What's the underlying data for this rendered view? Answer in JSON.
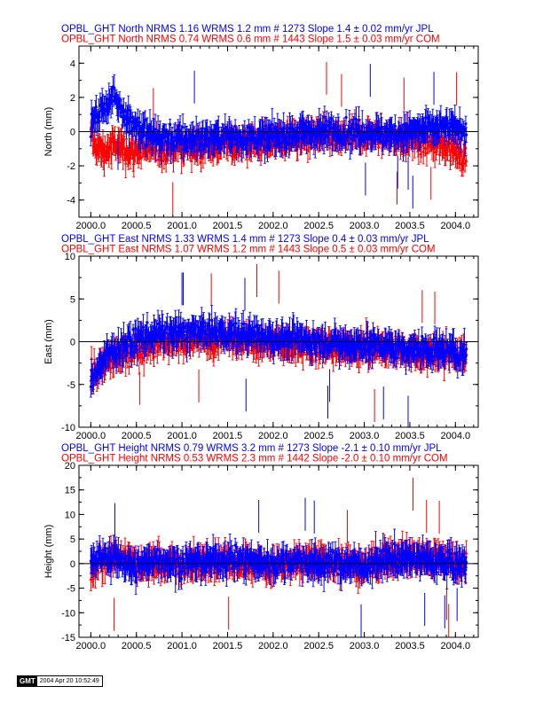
{
  "colors": {
    "jpl": "#0000ff",
    "com": "#ff0000",
    "axis": "#000000"
  },
  "chart_data": [
    {
      "type": "scatter",
      "ylabel": "North (mm)",
      "ylim": [
        -5,
        5
      ],
      "yticks": [
        -4,
        -2,
        0,
        2,
        4
      ],
      "xlim": [
        1999.87,
        2004.25
      ],
      "xticks": [
        "2000.0",
        "2000.5",
        "2001.0",
        "2001.5",
        "2002.0",
        "2002.5",
        "2003.0",
        "2003.5",
        "2004.0"
      ],
      "series": [
        {
          "name": "JPL",
          "title": "OPBL_GHT North NRMS 1.16 WRMS  1.2 mm # 1273 Slope    1.4 ±  0.02 mm/yr JPL",
          "points": [
            [
              2000.0,
              0.5
            ],
            [
              2000.08,
              1.0
            ],
            [
              2000.15,
              1.5
            ],
            [
              2000.25,
              2.0
            ],
            [
              2000.35,
              1.2
            ],
            [
              2000.45,
              0.6
            ],
            [
              2000.55,
              0.1
            ],
            [
              2000.65,
              -0.2
            ],
            [
              2000.8,
              -0.4
            ],
            [
              2001.0,
              -0.5
            ],
            [
              2001.25,
              -0.4
            ],
            [
              2001.5,
              -0.3
            ],
            [
              2001.75,
              -0.4
            ],
            [
              2002.0,
              -0.3
            ],
            [
              2002.25,
              -0.1
            ],
            [
              2002.5,
              0.0
            ],
            [
              2002.75,
              0.0
            ],
            [
              2003.0,
              0.0
            ],
            [
              2003.25,
              -0.2
            ],
            [
              2003.5,
              0.0
            ],
            [
              2003.75,
              0.2
            ],
            [
              2004.0,
              0.2
            ],
            [
              2004.12,
              0.1
            ]
          ]
        },
        {
          "name": "COM",
          "title": "OPBL_GHT North NRMS 0.74 WRMS  0.6 mm # 1443 Slope    1.5 ±  0.03 mm/yr COM",
          "points": [
            [
              2000.0,
              -0.3
            ],
            [
              2000.08,
              -1.0
            ],
            [
              2000.15,
              -1.2
            ],
            [
              2000.25,
              -0.8
            ],
            [
              2000.35,
              -0.9
            ],
            [
              2000.45,
              -1.2
            ],
            [
              2000.55,
              -1.0
            ],
            [
              2000.65,
              -1.1
            ],
            [
              2000.8,
              -1.0
            ],
            [
              2001.0,
              -0.9
            ],
            [
              2001.25,
              -0.8
            ],
            [
              2001.5,
              -0.7
            ],
            [
              2001.75,
              -0.7
            ],
            [
              2002.0,
              -0.5
            ],
            [
              2002.25,
              -0.4
            ],
            [
              2002.5,
              -0.3
            ],
            [
              2002.75,
              -0.4
            ],
            [
              2003.0,
              -0.2
            ],
            [
              2003.25,
              -0.3
            ],
            [
              2003.5,
              -0.5
            ],
            [
              2003.75,
              -0.8
            ],
            [
              2004.0,
              -1.0
            ],
            [
              2004.12,
              -1.5
            ]
          ]
        }
      ]
    },
    {
      "type": "scatter",
      "ylabel": "East (mm)",
      "ylim": [
        -10,
        10
      ],
      "yticks": [
        -10,
        -5,
        0,
        5,
        10
      ],
      "xlim": [
        1999.87,
        2004.25
      ],
      "xticks": [
        "2000.0",
        "2000.5",
        "2001.0",
        "2001.5",
        "2002.0",
        "2002.5",
        "2003.0",
        "2003.5",
        "2004.0"
      ],
      "series": [
        {
          "name": "JPL",
          "title": "OPBL_GHT East NRMS 1.33 WRMS  1.4 mm # 1273 Slope    0.4 ±  0.03 mm/yr JPL",
          "points": [
            [
              2000.0,
              -4.5
            ],
            [
              2000.08,
              -3.0
            ],
            [
              2000.15,
              -2.0
            ],
            [
              2000.25,
              -1.0
            ],
            [
              2000.35,
              -0.5
            ],
            [
              2000.45,
              0.0
            ],
            [
              2000.55,
              0.5
            ],
            [
              2000.65,
              0.8
            ],
            [
              2000.8,
              1.0
            ],
            [
              2001.0,
              1.0
            ],
            [
              2001.25,
              1.2
            ],
            [
              2001.5,
              1.0
            ],
            [
              2001.75,
              0.8
            ],
            [
              2002.0,
              0.5
            ],
            [
              2002.25,
              0.3
            ],
            [
              2002.5,
              0.0
            ],
            [
              2002.75,
              -0.3
            ],
            [
              2003.0,
              -0.3
            ],
            [
              2003.25,
              -0.6
            ],
            [
              2003.5,
              -0.9
            ],
            [
              2003.75,
              -1.0
            ],
            [
              2004.0,
              -1.2
            ],
            [
              2004.12,
              -1.6
            ]
          ]
        },
        {
          "name": "COM",
          "title": "OPBL_GHT East NRMS 1.07 WRMS  1.2 mm # 1443 Slope    0.5 ±  0.03 mm/yr COM",
          "points": [
            [
              2000.0,
              -4.0
            ],
            [
              2000.08,
              -3.5
            ],
            [
              2000.15,
              -2.5
            ],
            [
              2000.25,
              -1.8
            ],
            [
              2000.35,
              -1.5
            ],
            [
              2000.45,
              -1.0
            ],
            [
              2000.55,
              -0.6
            ],
            [
              2000.65,
              -0.3
            ],
            [
              2000.8,
              -0.1
            ],
            [
              2001.0,
              0.0
            ],
            [
              2001.25,
              0.2
            ],
            [
              2001.5,
              0.1
            ],
            [
              2001.75,
              0.0
            ],
            [
              2002.0,
              -0.2
            ],
            [
              2002.25,
              -0.3
            ],
            [
              2002.5,
              -0.6
            ],
            [
              2002.75,
              -0.8
            ],
            [
              2003.0,
              -0.7
            ],
            [
              2003.25,
              -0.8
            ],
            [
              2003.5,
              -1.2
            ],
            [
              2003.75,
              -1.4
            ],
            [
              2004.0,
              -1.6
            ],
            [
              2004.12,
              -2.0
            ]
          ]
        }
      ]
    },
    {
      "type": "scatter",
      "ylabel": "Height (mm)",
      "ylim": [
        -15,
        20
      ],
      "yticks": [
        -15,
        -10,
        -5,
        0,
        5,
        10,
        15,
        20
      ],
      "xlim": [
        1999.87,
        2004.25
      ],
      "xticks": [
        "2000.0",
        "2000.5",
        "2001.0",
        "2001.5",
        "2002.0",
        "2002.5",
        "2003.0",
        "2003.5",
        "2004.0"
      ],
      "series": [
        {
          "name": "JPL",
          "title": "OPBL_GHT Height NRMS 0.79 WRMS  3.2 mm # 1273 Slope   -2.1 ±  0.10 mm/yr JPL",
          "points": [
            [
              2000.0,
              0.0
            ],
            [
              2000.1,
              1.0
            ],
            [
              2000.2,
              1.5
            ],
            [
              2000.3,
              1.0
            ],
            [
              2000.4,
              0.0
            ],
            [
              2000.5,
              -1.0
            ],
            [
              2000.6,
              0.0
            ],
            [
              2000.7,
              1.0
            ],
            [
              2000.8,
              0.5
            ],
            [
              2001.0,
              0.0
            ],
            [
              2001.25,
              0.5
            ],
            [
              2001.5,
              1.0
            ],
            [
              2001.75,
              0.5
            ],
            [
              2002.0,
              0.0
            ],
            [
              2002.25,
              0.5
            ],
            [
              2002.5,
              0.0
            ],
            [
              2002.75,
              0.0
            ],
            [
              2003.0,
              -0.5
            ],
            [
              2003.25,
              1.0
            ],
            [
              2003.5,
              1.0
            ],
            [
              2003.75,
              0.5
            ],
            [
              2004.0,
              0.0
            ],
            [
              2004.12,
              0.0
            ]
          ]
        },
        {
          "name": "COM",
          "title": "OPBL_GHT Height NRMS 0.53 WRMS  2.3 mm # 1442 Slope   -2.0 ±  0.10 mm/yr COM",
          "points": [
            [
              2000.0,
              -1.0
            ],
            [
              2000.1,
              0.5
            ],
            [
              2000.2,
              1.0
            ],
            [
              2000.3,
              2.0
            ],
            [
              2000.4,
              1.0
            ],
            [
              2000.5,
              0.0
            ],
            [
              2000.6,
              -0.5
            ],
            [
              2000.7,
              0.5
            ],
            [
              2000.8,
              0.0
            ],
            [
              2001.0,
              -0.5
            ],
            [
              2001.25,
              0.5
            ],
            [
              2001.5,
              0.5
            ],
            [
              2001.75,
              0.0
            ],
            [
              2002.0,
              -0.5
            ],
            [
              2002.25,
              0.0
            ],
            [
              2002.5,
              0.5
            ],
            [
              2002.75,
              0.0
            ],
            [
              2003.0,
              -1.0
            ],
            [
              2003.25,
              1.5
            ],
            [
              2003.5,
              1.5
            ],
            [
              2003.75,
              1.0
            ],
            [
              2004.0,
              0.5
            ],
            [
              2004.12,
              0.0
            ]
          ]
        }
      ]
    }
  ],
  "footer": {
    "logo": "GMT",
    "stamp": "2004 Apr 20 10:52:49"
  }
}
